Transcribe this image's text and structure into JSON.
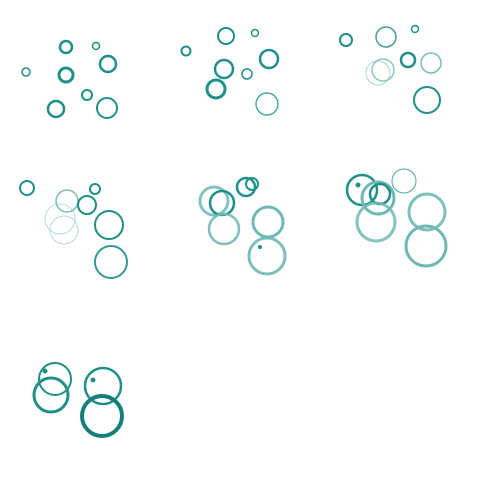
{
  "colors": {
    "background": "#ffffff",
    "teal_dark": "#137f7a",
    "teal": "#1f8f8a",
    "teal_light": "#6fb8b4",
    "teal_pale": "#a7d2cf"
  },
  "panels": [
    {
      "name": "panel-1"
    },
    {
      "name": "panel-2"
    },
    {
      "name": "panel-3"
    },
    {
      "name": "panel-4"
    },
    {
      "name": "panel-5"
    },
    {
      "name": "panel-6"
    },
    {
      "name": "panel-7"
    }
  ]
}
